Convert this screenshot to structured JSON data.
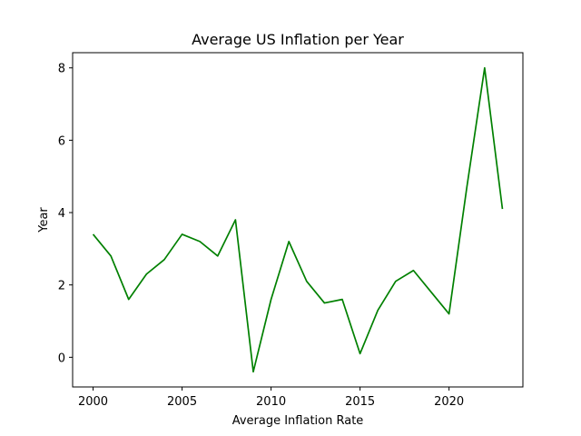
{
  "chart_data": {
    "type": "line",
    "title": "Average US Inflation per Year",
    "xlabel": "Average Inflation Rate",
    "ylabel": "Year",
    "x": [
      2000,
      2001,
      2002,
      2003,
      2004,
      2005,
      2006,
      2007,
      2008,
      2009,
      2010,
      2011,
      2012,
      2013,
      2014,
      2015,
      2016,
      2017,
      2018,
      2019,
      2020,
      2021,
      2022,
      2023
    ],
    "series": [
      {
        "values": [
          3.4,
          2.8,
          1.6,
          2.3,
          2.7,
          3.4,
          3.2,
          2.8,
          3.8,
          -0.4,
          1.6,
          3.2,
          2.1,
          1.5,
          1.6,
          0.1,
          1.3,
          2.1,
          2.4,
          1.8,
          1.2,
          4.7,
          8.0,
          4.1
        ],
        "color": "#008000"
      }
    ],
    "xlim": [
      1998.85,
      2024.15
    ],
    "ylim": [
      -0.82,
      8.42
    ],
    "xticks": [
      2000,
      2005,
      2010,
      2015,
      2020
    ],
    "yticks": [
      0,
      2,
      4,
      6,
      8
    ],
    "grid": false,
    "legend": "none"
  }
}
